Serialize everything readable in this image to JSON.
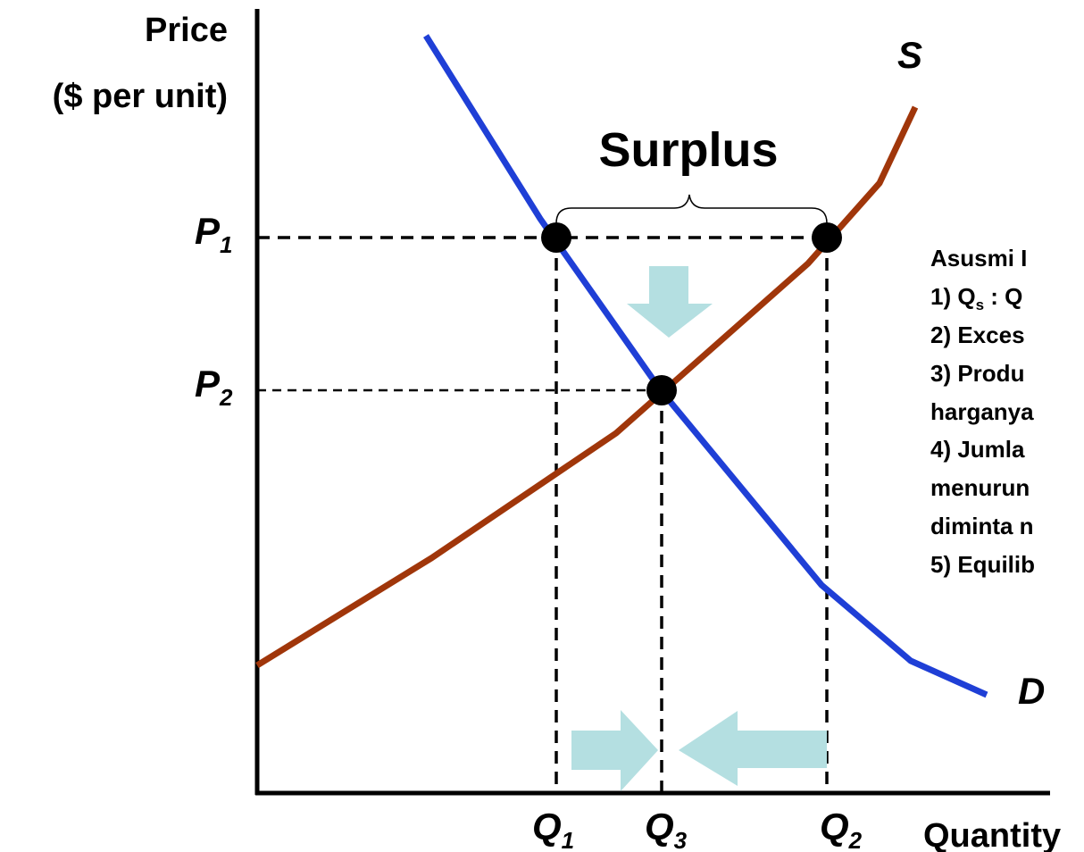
{
  "axes": {
    "y_label_1": "Price",
    "y_label_2": "($ per unit)",
    "x_label": "Quantity"
  },
  "curves": {
    "supply": "S",
    "demand": "D"
  },
  "annotation": "Surplus",
  "price_labels": [
    {
      "main": "P",
      "sub": "1"
    },
    {
      "main": "P",
      "sub": "2"
    }
  ],
  "quantity_labels": [
    {
      "main": "Q",
      "sub": "1"
    },
    {
      "main": "Q",
      "sub": "3"
    },
    {
      "main": "Q",
      "sub": "2"
    }
  ],
  "notes": {
    "title": "Asusmi I",
    "line1": {
      "a": "1) Q",
      "sub": "s",
      "b": " : Q"
    },
    "lines": [
      "2) Exces",
      "3) Produ",
      "harganya",
      "4) Jumla",
      "menurun",
      "diminta n",
      "5) Equilib"
    ]
  }
}
